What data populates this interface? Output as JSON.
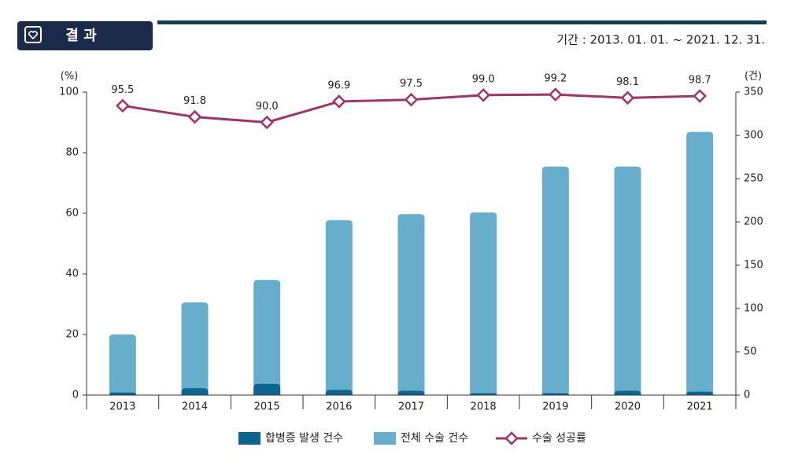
{
  "header": {
    "title": "결 과",
    "period": "기간 : 2013. 01. 01. ~ 2021. 12. 31."
  },
  "chart_data": {
    "type": "combo",
    "categories": [
      "2013",
      "2014",
      "2015",
      "2016",
      "2017",
      "2018",
      "2019",
      "2020",
      "2021"
    ],
    "y_label": "(%)",
    "y2_label": "(건)",
    "ylim": [
      0,
      100
    ],
    "yticks": [
      0,
      20,
      40,
      60,
      80,
      100
    ],
    "y2lim": [
      0,
      350
    ],
    "y2ticks": [
      0,
      50,
      100,
      150,
      200,
      250,
      300,
      350
    ],
    "series": [
      {
        "name": "전체 수술 건수",
        "type": "bar",
        "axis": "y2",
        "color": "#67adcc",
        "values": [
          70,
          107,
          133,
          202,
          209,
          211,
          264,
          264,
          304
        ]
      },
      {
        "name": "합병증 발생 건수",
        "type": "bar",
        "axis": "y2",
        "color": "#0a6591",
        "values": [
          3,
          8,
          13,
          6,
          5,
          2,
          2,
          5,
          4
        ]
      },
      {
        "name": "수술 성공률",
        "type": "line",
        "axis": "y",
        "color": "#a0336a",
        "values": [
          95.5,
          91.8,
          90,
          96.9,
          97.5,
          99,
          99.2,
          98.1,
          98.7
        ],
        "value_labels": [
          "95.5",
          "91.8",
          "90.0",
          "96.9",
          "97.5",
          "99.0",
          "99.2",
          "98.1",
          "98.7"
        ]
      }
    ]
  }
}
